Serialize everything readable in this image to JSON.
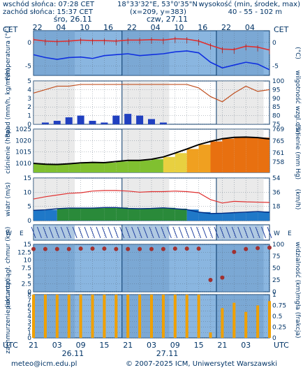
{
  "header": {
    "sunrise": "wschód słońca: 07:28 CET",
    "sunset": "zachód słońca: 15:37 CET",
    "coords": "18°33'32\"E, 53°0'35\"N",
    "grid": "(x=209,  y=383)",
    "height_label": "wysokość (min, środek, max)",
    "height_values": "40 - 55 - 102 m"
  },
  "top_axis": {
    "tz": "CET",
    "day1": "śro, 26.11",
    "day2": "czw, 27.11",
    "hours": [
      "22",
      "04",
      "10",
      "16",
      "22",
      "04",
      "10",
      "16",
      "22",
      "04"
    ]
  },
  "bottom_axis": {
    "tz": "UTC",
    "hours": [
      "21",
      "03",
      "09",
      "15",
      "21",
      "03",
      "09",
      "15",
      "21",
      "03"
    ],
    "day1": "26.11",
    "day2": "27.11"
  },
  "footer": {
    "email": "meteo@icm.edu.pl",
    "copyright": "© 2007-2025 ICM, Uniwersytet Warszawski"
  },
  "colors": {
    "temperature": "#e03030",
    "dewpoint": "#1030e0",
    "precip": "#2040c0",
    "humidity": "#c05020",
    "pressure_line": "#000000",
    "wind_line": "#e03030",
    "cloud_base": "#f0a000",
    "panel_blue": "#8ab6e0",
    "night_grey": "#c8c8c8"
  },
  "chart_data": [
    {
      "type": "line",
      "panel": "temperature",
      "ylabel": "temperatura (°C)",
      "ylabel_right": "(°C)",
      "ylim": [
        -7,
        2.5
      ],
      "yticks": [
        0,
        -5
      ],
      "x_hours": [
        0,
        3,
        6,
        9,
        12,
        15,
        18,
        21,
        24,
        27,
        30,
        33,
        36,
        39,
        42,
        45,
        48,
        51,
        54,
        57,
        60
      ],
      "series": [
        {
          "role": "temperature",
          "values": [
            0.6,
            0.3,
            0.2,
            0.3,
            0.5,
            0.4,
            0.4,
            0.3,
            0.5,
            0.5,
            0.6,
            0.5,
            0.8,
            0.7,
            0.3,
            -0.6,
            -1.4,
            -1.5,
            -0.8,
            -1.0,
            -1.6
          ]
        },
        {
          "role": "dewpoint",
          "values": [
            -2.6,
            -3.2,
            -3.6,
            -3.2,
            -3.1,
            -3.4,
            -2.8,
            -2.6,
            -2.4,
            -2.8,
            -2.6,
            -2.4,
            -2.0,
            -1.8,
            -2.2,
            -4.2,
            -5.4,
            -4.8,
            -4.2,
            -4.6,
            -5.8
          ]
        }
      ],
      "grid": true
    },
    {
      "type": "bar",
      "panel": "precipitation",
      "ylabel": "opad (mm/h, kg/m²/h)",
      "ylabel_right": "wilgotność wzgl. (%)",
      "ylim": [
        0,
        5
      ],
      "yticks": [
        0,
        1,
        2,
        3,
        4,
        5
      ],
      "ylim_right": [
        75,
        100
      ],
      "yticks_right": [
        75,
        80,
        85,
        90,
        95,
        100
      ],
      "x_hours": [
        0,
        3,
        6,
        9,
        12,
        15,
        18,
        21,
        24,
        27,
        30,
        33,
        36,
        39,
        42,
        45,
        48,
        51,
        54,
        57,
        60
      ],
      "series": [
        {
          "role": "precipitation",
          "values": [
            0,
            0.2,
            0.4,
            0.8,
            1.0,
            0.4,
            0.2,
            1.0,
            1.2,
            1.0,
            0.6,
            0.2,
            0,
            0,
            0,
            0,
            0,
            0,
            0,
            0,
            0
          ]
        },
        {
          "role": "humidity",
          "values": [
            93,
            95,
            97,
            97,
            98,
            98,
            98,
            98,
            98,
            98,
            98,
            98,
            98,
            98,
            96,
            91,
            88,
            93,
            97,
            94,
            95
          ]
        }
      ],
      "grid": true
    },
    {
      "type": "area",
      "panel": "pressure",
      "ylabel": "ciśnienie (hPa)",
      "ylabel_right": "ciśnienie (mm Hg)",
      "ylim": [
        1006,
        1025
      ],
      "yticks": [
        1010,
        1015,
        1020,
        1025
      ],
      "yticks_right": [
        758,
        761,
        765,
        769
      ],
      "x_hours": [
        0,
        3,
        6,
        9,
        12,
        15,
        18,
        21,
        24,
        27,
        30,
        33,
        36,
        39,
        42,
        45,
        48,
        51,
        54,
        57,
        60
      ],
      "series": [
        {
          "role": "pressure",
          "values": [
            1010.0,
            1009.6,
            1009.5,
            1009.8,
            1010.2,
            1010.4,
            1010.3,
            1010.8,
            1011.3,
            1011.3,
            1011.8,
            1012.8,
            1014.5,
            1016.3,
            1018.2,
            1019.6,
            1020.8,
            1021.4,
            1021.5,
            1021.3,
            1020.7
          ]
        }
      ],
      "grid": true
    },
    {
      "type": "line",
      "panel": "wind",
      "ylabel": "wiatr (m/s)",
      "ylabel_right": "(km/h)",
      "ylim": [
        0,
        15
      ],
      "yticks": [
        0,
        5,
        10,
        15
      ],
      "yticks_right": [
        18,
        36,
        54
      ],
      "x_hours": [
        0,
        3,
        6,
        9,
        12,
        15,
        18,
        21,
        24,
        27,
        30,
        33,
        36,
        39,
        42,
        45,
        48,
        51,
        54,
        57,
        60
      ],
      "series": [
        {
          "role": "gusts",
          "values": [
            7.6,
            8.4,
            9.0,
            9.6,
            9.8,
            10.4,
            10.6,
            10.6,
            10.4,
            10.0,
            10.2,
            10.2,
            10.4,
            10.2,
            9.8,
            7.4,
            6.2,
            6.8,
            6.6,
            6.5,
            6.4
          ]
        },
        {
          "role": "wind_speed",
          "values": [
            3.6,
            3.8,
            4.2,
            4.4,
            4.4,
            4.4,
            4.6,
            4.6,
            4.3,
            4.2,
            4.3,
            4.5,
            4.2,
            3.9,
            3.0,
            2.5,
            2.6,
            2.8,
            3.0,
            3.2,
            2.9
          ]
        }
      ],
      "grid": true
    },
    {
      "type": "line",
      "panel": "visibility",
      "ylabel": "pion. rozciągł. chmur (km)",
      "ylabel_right": "widzialność (km)",
      "ylim": [
        0,
        15
      ],
      "yticks": [
        0,
        2.5,
        5,
        7.5,
        10,
        12.5,
        15
      ],
      "ylim_right": [
        0,
        100
      ],
      "yticks_right": [
        0,
        25,
        50,
        75,
        100
      ],
      "x_hours": [
        0,
        3,
        6,
        9,
        12,
        15,
        18,
        21,
        24,
        27,
        30,
        33,
        36,
        39,
        42,
        45,
        48,
        51,
        54,
        57,
        60
      ],
      "series": [
        {
          "role": "visibility",
          "values": [
            90,
            90,
            90,
            90,
            91,
            91,
            91,
            90,
            90,
            90,
            90,
            90,
            91,
            91,
            91,
            25,
            30,
            84,
            90,
            92,
            93
          ]
        }
      ],
      "grid": true
    },
    {
      "type": "bar",
      "panel": "clouds",
      "ylabel": "zachmurzenie (oktanty)",
      "ylabel_right": "mgła (frakcja)",
      "ylim": [
        0,
        8
      ],
      "yticks": [
        0,
        1,
        2,
        3,
        4,
        5,
        6,
        7,
        8
      ],
      "yticks_right": [
        0,
        0.25,
        0.5,
        0.75,
        1
      ],
      "x_hours": [
        0,
        3,
        6,
        9,
        12,
        15,
        18,
        21,
        24,
        27,
        30,
        33,
        36,
        39,
        42,
        45,
        48,
        51,
        54,
        57,
        60
      ],
      "series": [
        {
          "role": "cloud_cover",
          "values": [
            8,
            8,
            8,
            8,
            8,
            8,
            8,
            8,
            8,
            8,
            8,
            8,
            8,
            8,
            8,
            1.0,
            5.5,
            6.5,
            4.8,
            6.0,
            6.8
          ]
        }
      ],
      "grid": true
    }
  ]
}
